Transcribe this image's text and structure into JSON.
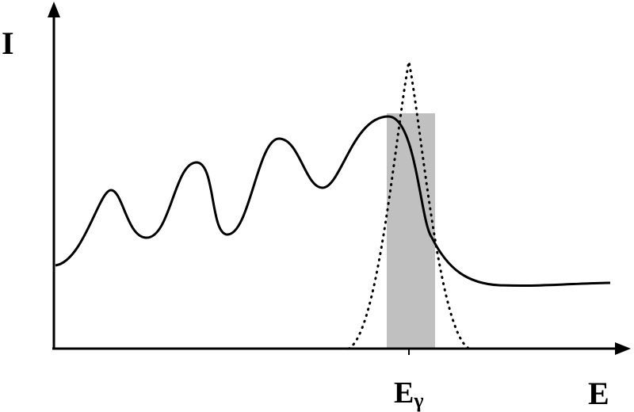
{
  "axes": {
    "y_label": "I",
    "x_label": "E"
  },
  "marker": {
    "label": "E",
    "subscript": "γ"
  }
}
